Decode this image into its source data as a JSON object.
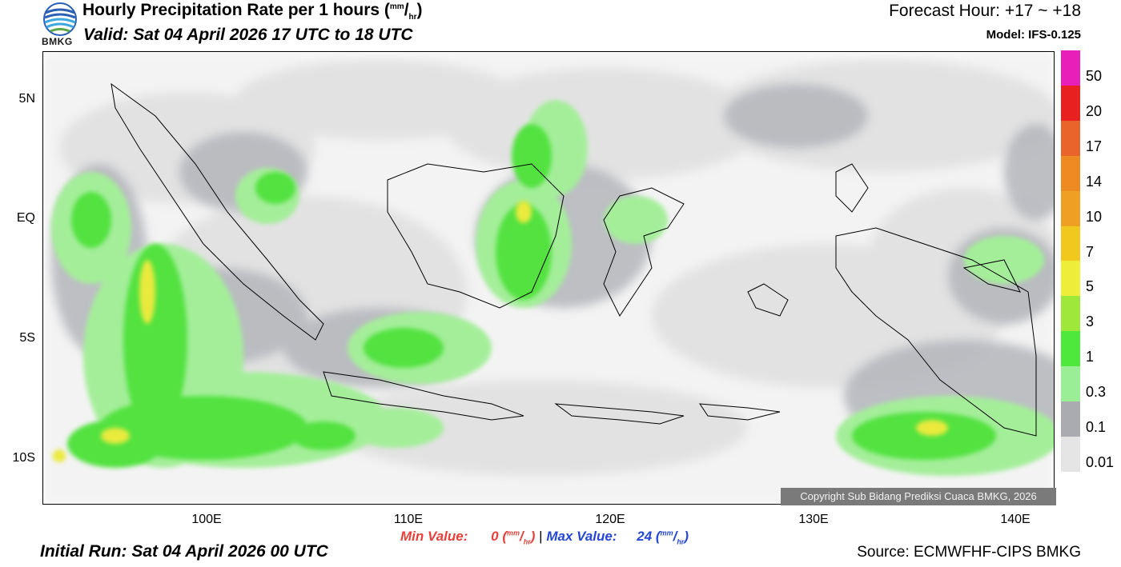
{
  "header": {
    "logo_text": "BMKG",
    "title_main": "Hourly Precipitation Rate per 1 hours (",
    "title_unit_num": "mm",
    "title_unit_den": "hr",
    "title_close": ")",
    "valid": "Valid: Sat 04 April 2026 17 UTC to 18 UTC",
    "forecast_hour": "Forecast Hour: +17 ~ +18",
    "model": "Model: IFS-0.125"
  },
  "map": {
    "lat_labels": [
      "5N",
      "EQ",
      "5S",
      "10S"
    ],
    "lon_labels": [
      "100E",
      "110E",
      "120E",
      "130E",
      "140E"
    ],
    "copyright": "Copyright Sub Bidang Prediksi Cuaca BMKG, 2026"
  },
  "colorbar": {
    "labels": [
      "50",
      "20",
      "17",
      "14",
      "10",
      "7",
      "5",
      "3",
      "1",
      "0.3",
      "0.1",
      "0.01"
    ],
    "colors": [
      "#e81fb8",
      "#e82020",
      "#e8642a",
      "#ee8a22",
      "#eea025",
      "#f0c81e",
      "#eeee3a",
      "#9ee83c",
      "#4ee83c",
      "#9aee96",
      "#a9abb1",
      "#e5e5e5"
    ]
  },
  "stats": {
    "min_label": "Min Value:",
    "min_value": "0",
    "sep": "|",
    "max_label": "Max Value:",
    "max_value": "24",
    "unit_num": "mm",
    "unit_den": "hr"
  },
  "footer": {
    "initial_run": "Initial Run: Sat 04 April 2026 00 UTC",
    "source": "Source: ECMWFHF-CIPS BMKG"
  }
}
